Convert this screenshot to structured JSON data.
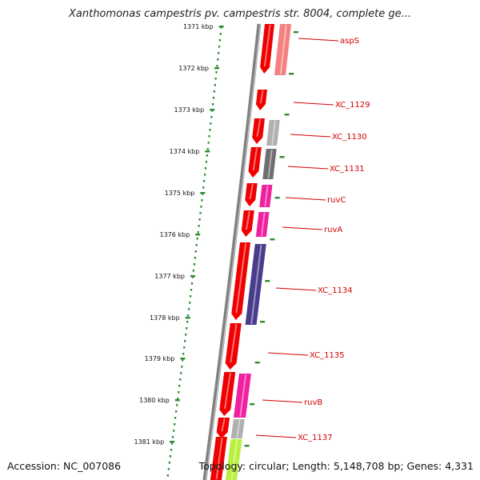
{
  "title": "Xanthomonas campestris pv. campestris str. 8004, complete ge...",
  "accession": "Accession: NC_007086",
  "topology": "Topology: circular; Length: 5,148,708 bp; Genes: 4,331",
  "colors": {
    "ruler": "#2e8b2e",
    "backbone": "#808080",
    "label": "#d40000",
    "gene_forward": "#f00000",
    "gene_light_pink": "#f48080",
    "gene_grey": "#b0b0b0",
    "gene_dark_grey": "#6e6e6e",
    "gene_magenta": "#f020a0",
    "gene_indigo": "#4a3c8c",
    "gene_lime": "#b8f040"
  },
  "ruler": {
    "ticks": [
      {
        "label": "1371 kbp"
      },
      {
        "label": "1372 kbp"
      },
      {
        "label": "1373 kbp"
      },
      {
        "label": "1374 kbp"
      },
      {
        "label": "1375 kbp"
      },
      {
        "label": "1376 kbp"
      },
      {
        "label": "1377 kbp"
      },
      {
        "label": "1378 kbp"
      },
      {
        "label": "1379 kbp"
      },
      {
        "label": "1380 kbp"
      },
      {
        "label": "1381 kbp"
      }
    ]
  },
  "genes": [
    {
      "label": "aspS"
    },
    {
      "label": "XC_1129"
    },
    {
      "label": "XC_1130"
    },
    {
      "label": "XC_1131"
    },
    {
      "label": "ruvC"
    },
    {
      "label": "ruvA"
    },
    {
      "label": "XC_1134"
    },
    {
      "label": "XC_1135"
    },
    {
      "label": "ruvB"
    },
    {
      "label": "XC_1137"
    }
  ]
}
